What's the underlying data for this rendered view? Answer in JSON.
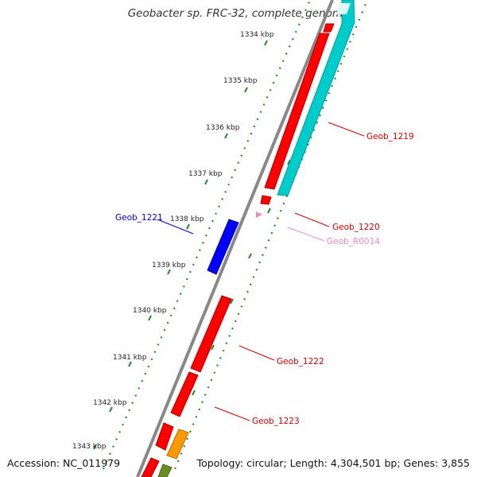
{
  "header": {
    "title": "Geobacter sp. FRC-32, complete genome"
  },
  "footer": {
    "accession": "Accession: NC_011979",
    "summary": "Topology: circular; Length: 4,304,501 bp; Genes: 3,855"
  },
  "scale": {
    "tick_labels": [
      "1334 kbp",
      "1335 kbp",
      "1336 kbp",
      "1337 kbp",
      "1338 kbp",
      "1339 kbp",
      "1340 kbp",
      "1341 kbp",
      "1342 kbp",
      "1343 kbp"
    ]
  },
  "genes": [
    {
      "label": "Geob_1219",
      "color": "#cc0000"
    },
    {
      "label": "Geob_1220",
      "color": "#cc0000"
    },
    {
      "label": "Geob_R0014",
      "color": "#ee88bb"
    },
    {
      "label": "Geob_1221",
      "color": "#0000cc"
    },
    {
      "label": "Geob_1222",
      "color": "#cc0000"
    },
    {
      "label": "Geob_1223",
      "color": "#cc0000"
    }
  ],
  "colors": {
    "backbone": "#888888",
    "scale_dots": "#2a8a2a",
    "gene_forward": "#ff0000",
    "gene_reverse_blue": "#0000ff",
    "gene_cyan": "#00cccc",
    "gene_orange": "#ff9900",
    "gene_olive": "#6b8e23"
  }
}
